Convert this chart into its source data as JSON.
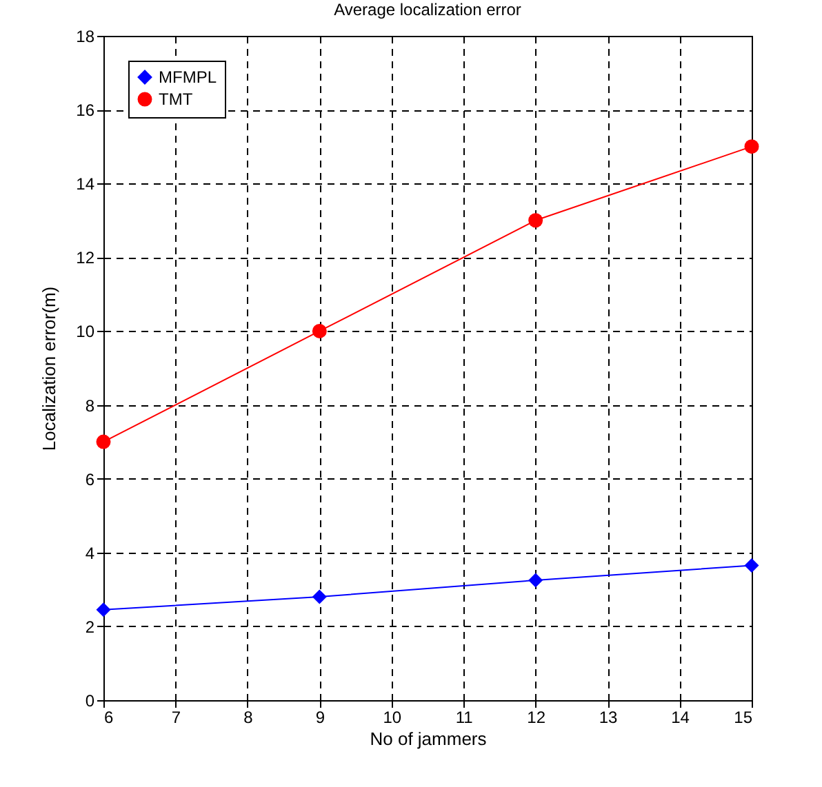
{
  "chart_data": {
    "type": "line",
    "title": "Average localization error",
    "xlabel": "No of jammers",
    "ylabel": "Localization error(m)",
    "x": [
      6,
      9,
      12,
      15
    ],
    "series": [
      {
        "name": "MFMPL",
        "color": "#0000ff",
        "marker": "diamond",
        "values": [
          2.45,
          2.8,
          3.25,
          3.65
        ]
      },
      {
        "name": "TMT",
        "color": "#ff0000",
        "marker": "circle",
        "values": [
          7,
          10,
          13,
          15
        ]
      }
    ],
    "xlim": [
      6,
      15
    ],
    "xticks": [
      6,
      7,
      8,
      9,
      10,
      11,
      12,
      13,
      14,
      15
    ],
    "ylim": [
      0,
      18
    ],
    "yticks": [
      0,
      2,
      4,
      6,
      8,
      10,
      12,
      14,
      16,
      18
    ],
    "grid": true,
    "legend": "top left",
    "line_style": "solid"
  }
}
